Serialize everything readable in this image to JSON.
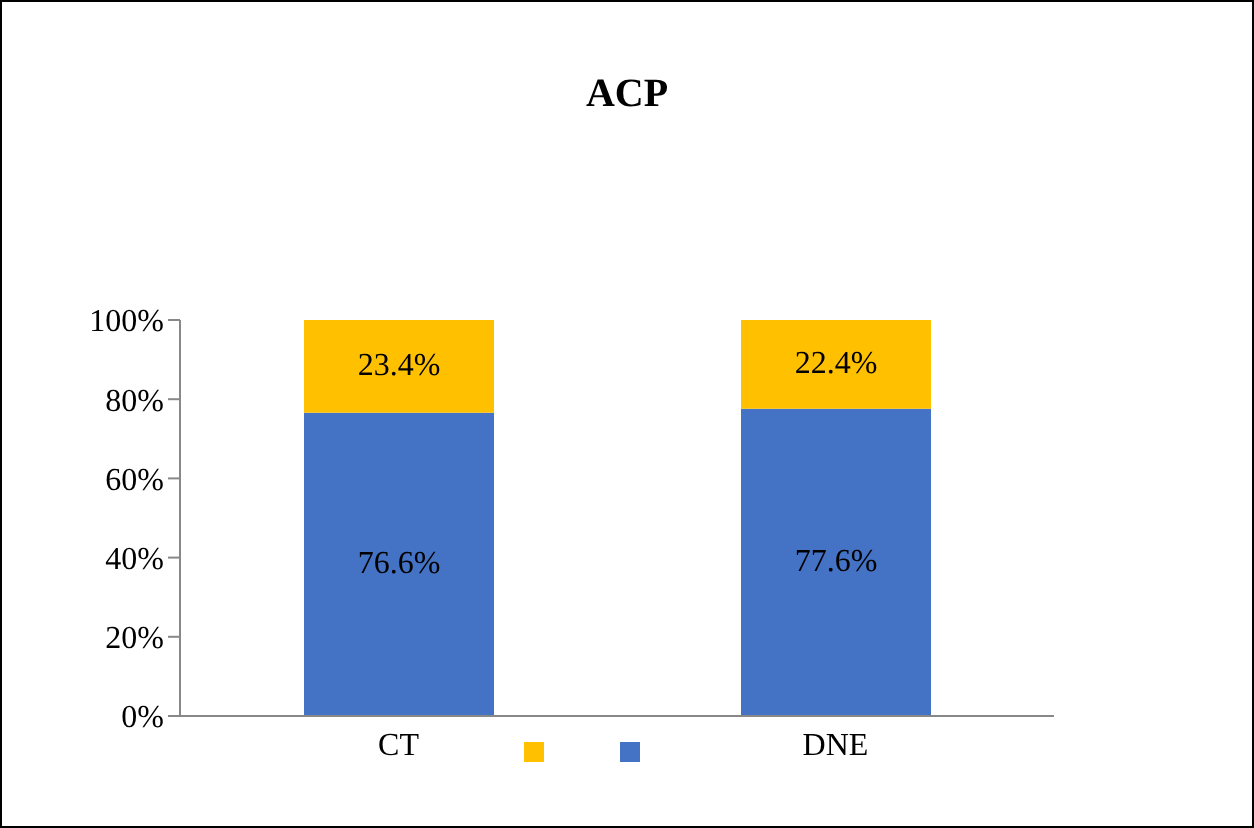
{
  "chart_data": {
    "type": "bar",
    "title": "ACP",
    "stacked": true,
    "categories": [
      "CT",
      "DNE"
    ],
    "series": [
      {
        "color": "#4472c4",
        "values": [
          76.6,
          77.6
        ],
        "value_labels": [
          "76.6%",
          "77.6%"
        ]
      },
      {
        "color": "#ffc000",
        "values": [
          23.4,
          22.4
        ],
        "value_labels": [
          "23.4%",
          "22.4%"
        ]
      }
    ],
    "ylim": [
      0,
      100
    ],
    "yticks": [
      {
        "value": 0,
        "label": "0%"
      },
      {
        "value": 20,
        "label": "20%"
      },
      {
        "value": 40,
        "label": "40%"
      },
      {
        "value": 60,
        "label": "60%"
      },
      {
        "value": 80,
        "label": "80%"
      },
      {
        "value": 100,
        "label": "100%"
      }
    ],
    "grid": false
  }
}
